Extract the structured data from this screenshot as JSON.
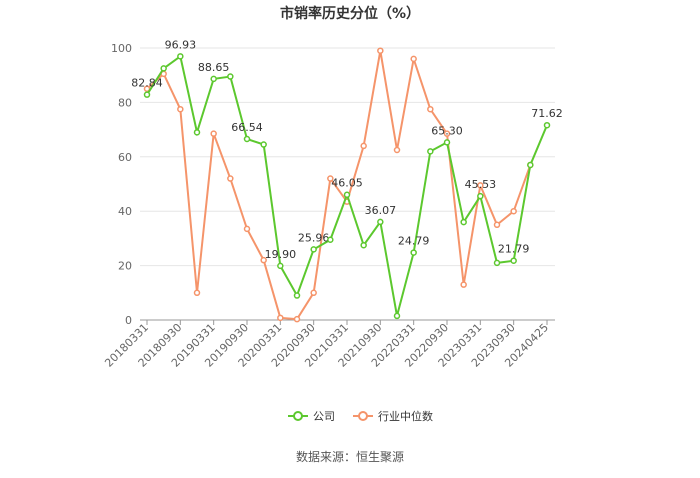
{
  "chart_data": {
    "type": "line",
    "title": "市销率历史分位（%）",
    "categories": [
      "20180331",
      null,
      "20180930",
      null,
      "20190331",
      null,
      "20190930",
      null,
      "20200331",
      null,
      "20200930",
      null,
      "20210331",
      null,
      "20210930",
      null,
      "20220331",
      null,
      "20220930",
      null,
      "20230331",
      null,
      "20230930",
      null,
      "20240425"
    ],
    "series": [
      {
        "name": "公司",
        "color": "#5cc82e",
        "values": [
          82.84,
          92.5,
          96.93,
          69,
          88.65,
          89.5,
          66.54,
          64.5,
          19.9,
          9,
          25.96,
          29.5,
          46.05,
          27.5,
          36.07,
          1.5,
          24.79,
          62,
          65.3,
          36,
          45.53,
          21,
          21.79,
          57,
          71.62
        ],
        "value_labels": [
          "82.84",
          null,
          "96.93",
          null,
          "88.65",
          null,
          "66.54",
          null,
          "19.90",
          null,
          "25.96",
          null,
          "46.05",
          null,
          "36.07",
          null,
          "24.79",
          null,
          "65.30",
          null,
          "45.53",
          null,
          "21.79",
          null,
          "71.62"
        ]
      },
      {
        "name": "行业中位数",
        "color": "#f5946a",
        "values": [
          85,
          90.5,
          77.5,
          10,
          68.5,
          52,
          33.5,
          22,
          0.8,
          0.3,
          10,
          52,
          43.5,
          64,
          99,
          62.5,
          96,
          77.5,
          68.5,
          13,
          49.5,
          35,
          40,
          57,
          null
        ]
      }
    ],
    "ylim": [
      0,
      100
    ],
    "yticks": [
      0,
      20,
      40,
      60,
      80,
      100
    ],
    "grid": true,
    "source": "数据来源：恒生聚源"
  }
}
